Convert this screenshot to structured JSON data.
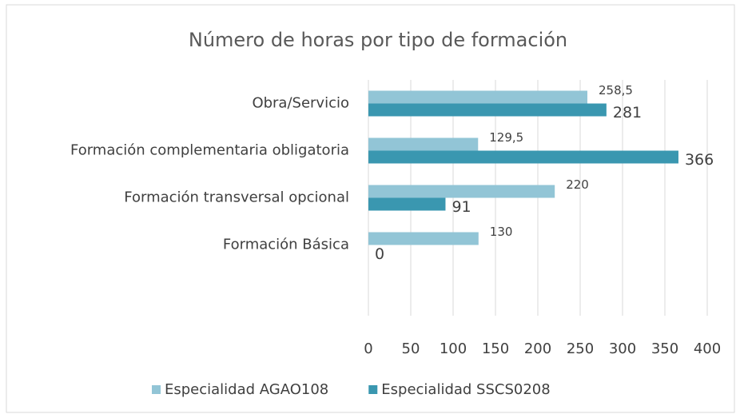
{
  "chart_data": {
    "type": "bar",
    "orientation": "horizontal",
    "title": "Número de horas  por tipo de formación",
    "categories": [
      "Obra/Servicio",
      "Formación complementaria obligatoria",
      "Formación transversal opcional",
      "Formación Básica",
      null
    ],
    "series": [
      {
        "name": "Especialidad AGAO108",
        "color": "#92c5d6",
        "values": [
          258.5,
          129.5,
          220,
          130,
          null
        ],
        "value_labels": [
          "258,5",
          "129,5",
          "220",
          "130",
          null
        ]
      },
      {
        "name": "Especialidad SSCS0208",
        "color": "#3a97b0",
        "values": [
          281,
          366,
          91,
          0,
          null
        ]
      }
    ],
    "xlim": [
      0,
      400
    ],
    "xticks": [
      0,
      50,
      100,
      150,
      200,
      250,
      300,
      350,
      400
    ],
    "grid": true,
    "legend": "bottom"
  }
}
